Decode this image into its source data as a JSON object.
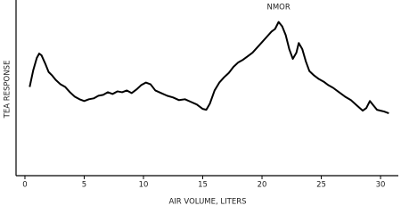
{
  "chart_data": {
    "type": "line",
    "x_label": "AIR VOLUME, LITERS",
    "y_label": "TEA RESPONSE",
    "annotation": "NMOR",
    "color": "#000000",
    "x": [
      0.4,
      0.7,
      1.0,
      1.2,
      1.4,
      1.7,
      2.0,
      2.3,
      2.6,
      3.0,
      3.4,
      3.8,
      4.2,
      4.6,
      5.0,
      5.4,
      5.8,
      6.2,
      6.6,
      7.0,
      7.4,
      7.8,
      8.2,
      8.6,
      9.0,
      9.4,
      9.8,
      10.2,
      10.6,
      11.0,
      11.5,
      12.0,
      12.5,
      13.0,
      13.5,
      14.0,
      14.5,
      15.0,
      15.3,
      15.6,
      16.0,
      16.4,
      16.8,
      17.2,
      17.6,
      18.0,
      18.4,
      18.8,
      19.2,
      19.6,
      20.0,
      20.4,
      20.8,
      21.1,
      21.4,
      21.7,
      22.0,
      22.3,
      22.6,
      22.9,
      23.1,
      23.4,
      23.7,
      24.0,
      24.4,
      24.8,
      25.2,
      25.6,
      26.0,
      26.5,
      27.0,
      27.5,
      28.0,
      28.5,
      28.8,
      29.1,
      29.4,
      29.7,
      30.0,
      30.3,
      30.7
    ],
    "values": [
      50.5,
      60,
      67,
      69.5,
      68.5,
      64,
      59,
      57,
      54.5,
      52,
      50.5,
      47.5,
      45,
      43.5,
      42.5,
      43.5,
      44,
      45.5,
      46,
      47.5,
      46.5,
      48,
      47.5,
      48.5,
      47,
      49,
      51.5,
      53,
      52,
      48.5,
      47,
      45.5,
      44.5,
      43,
      43.5,
      42,
      40.5,
      38,
      37.5,
      41,
      48.5,
      53,
      56,
      58.5,
      62,
      64.5,
      66,
      68,
      70,
      73,
      76,
      79,
      82,
      83.5,
      87.5,
      85,
      80,
      72,
      66.5,
      70,
      75.5,
      72,
      65,
      59.5,
      57,
      55,
      53.5,
      51.5,
      50,
      47.5,
      45,
      43,
      40,
      37,
      38.5,
      42.5,
      40,
      37.5,
      37,
      36.5,
      35.5
    ],
    "xlim": [
      -0.75,
      31.5
    ],
    "ylim": [
      0,
      100
    ],
    "xticks": [
      0,
      5,
      10,
      15,
      20,
      25,
      30
    ]
  }
}
